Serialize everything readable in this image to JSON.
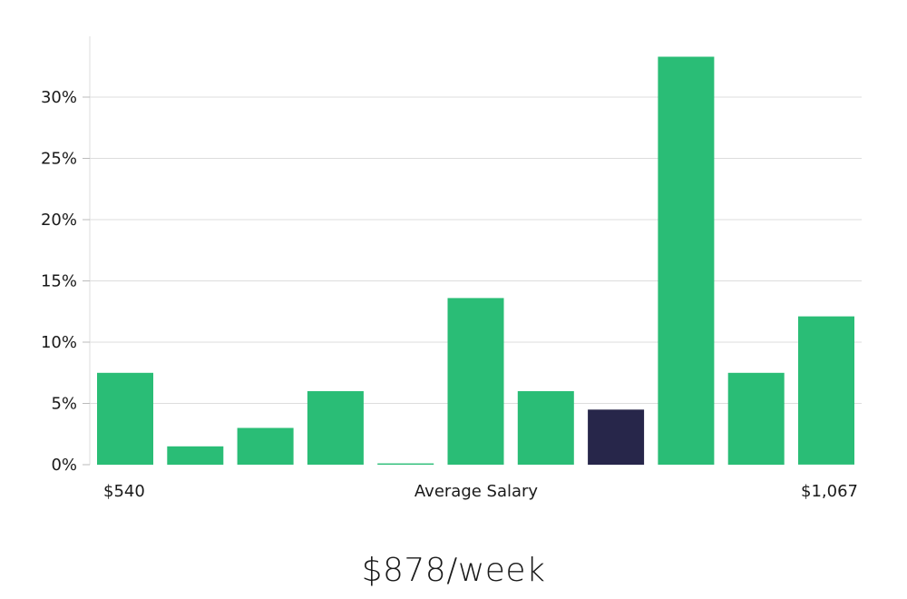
{
  "chart_data": {
    "type": "bar",
    "title": "",
    "xlabel": "Average Salary",
    "ylabel": "",
    "x_min_label": "$540",
    "x_max_label": "$1,067",
    "ylim": [
      0,
      35
    ],
    "yticks": [
      0,
      5,
      10,
      15,
      20,
      25,
      30
    ],
    "ytick_labels": [
      "0%",
      "5%",
      "10%",
      "15%",
      "20%",
      "25%",
      "30%"
    ],
    "grid": true,
    "values": [
      7.5,
      1.5,
      3.0,
      6.0,
      0.1,
      13.6,
      6.0,
      4.5,
      33.3,
      7.5,
      12.1
    ],
    "highlight_index": 7,
    "colors": {
      "bar": "#2abd76",
      "highlight": "#27264a",
      "grid": "#dddddd"
    }
  },
  "caption": {
    "salary": "$878/week"
  }
}
